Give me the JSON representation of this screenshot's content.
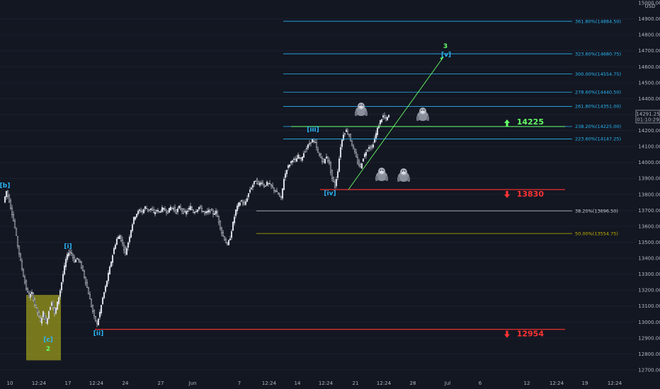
{
  "chart_data": {
    "type": "candlestick",
    "currency": "USD",
    "ylim": [
      12700,
      15000
    ],
    "y_ticks": [
      12700,
      12800,
      12900,
      13000,
      13100,
      13200,
      13300,
      13400,
      13500,
      13600,
      13700,
      13800,
      13900,
      14000,
      14100,
      14200,
      14300,
      14400,
      14500,
      14600,
      14700,
      14800,
      14900,
      15000
    ],
    "x_ticks": [
      "10",
      "12:24",
      "17",
      "12:24",
      "24",
      "27",
      "Jun",
      "7",
      "12:24",
      "14",
      "12:24",
      "21",
      "12:24",
      "28",
      "Jul",
      "6",
      "12",
      "12:24",
      "19",
      "12:24"
    ],
    "last_price": {
      "value": 14291.25,
      "label": "14291.25",
      "countdown": "01:10:29"
    },
    "fib_levels": [
      {
        "label": "361.80%(14884.50)",
        "value": 14884.5,
        "color": "#29b6f6"
      },
      {
        "label": "323.60%(14680.75)",
        "value": 14680.75,
        "color": "#29b6f6"
      },
      {
        "label": "300.00%(14554.75)",
        "value": 14554.75,
        "color": "#29b6f6"
      },
      {
        "label": "278.60%(14440.50)",
        "value": 14440.5,
        "color": "#29b6f6"
      },
      {
        "label": "261.80%(14351.00)",
        "value": 14351.0,
        "color": "#29b6f6"
      },
      {
        "label": "238.20%(14225.00)",
        "value": 14225.0,
        "color": "#29b6f6"
      },
      {
        "label": "223.60%(14147.25)",
        "value": 14147.25,
        "color": "#29b6f6"
      },
      {
        "label": "38.20%(13696.50)",
        "value": 13696.5,
        "color": "#d1d4dc"
      },
      {
        "label": "50.00%(13554.75)",
        "value": 13554.75,
        "color": "#c8b400"
      }
    ],
    "key_levels": [
      {
        "label": "14225",
        "value": 14225,
        "color": "#66ff66",
        "direction": "up"
      },
      {
        "label": "13830",
        "value": 13830,
        "color": "#ff3333",
        "direction": "down"
      },
      {
        "label": "12954",
        "value": 12954,
        "color": "#ff3333",
        "direction": "down"
      }
    ],
    "wave_labels": [
      {
        "text": "[b]",
        "color": "#29b6f6"
      },
      {
        "text": "[i]",
        "color": "#29b6f6"
      },
      {
        "text": "[c]",
        "color": "#29b6f6"
      },
      {
        "text": "2",
        "color": "#66ff66"
      },
      {
        "text": "[ii]",
        "color": "#29b6f6"
      },
      {
        "text": "[iii]",
        "color": "#29b6f6"
      },
      {
        "text": "[iv]",
        "color": "#29b6f6"
      },
      {
        "text": "[v]",
        "color": "#29b6f6"
      },
      {
        "text": "3",
        "color": "#66ff66"
      }
    ],
    "price_path": [
      [
        0,
        13750
      ],
      [
        4,
        13820
      ],
      [
        8,
        13760
      ],
      [
        12,
        13680
      ],
      [
        16,
        13590
      ],
      [
        20,
        13480
      ],
      [
        24,
        13380
      ],
      [
        28,
        13290
      ],
      [
        32,
        13210
      ],
      [
        36,
        13160
      ],
      [
        40,
        13180
      ],
      [
        44,
        13110
      ],
      [
        48,
        13060
      ],
      [
        52,
        13000
      ],
      [
        56,
        13060
      ],
      [
        60,
        12990
      ],
      [
        64,
        13070
      ],
      [
        68,
        13130
      ],
      [
        72,
        13050
      ],
      [
        76,
        13120
      ],
      [
        80,
        13200
      ],
      [
        84,
        13300
      ],
      [
        88,
        13390
      ],
      [
        92,
        13440
      ],
      [
        96,
        13430
      ],
      [
        100,
        13380
      ],
      [
        104,
        13400
      ],
      [
        108,
        13370
      ],
      [
        112,
        13320
      ],
      [
        116,
        13250
      ],
      [
        120,
        13180
      ],
      [
        124,
        13100
      ],
      [
        128,
        13030
      ],
      [
        132,
        12985
      ],
      [
        136,
        13060
      ],
      [
        140,
        13150
      ],
      [
        144,
        13220
      ],
      [
        148,
        13300
      ],
      [
        152,
        13380
      ],
      [
        156,
        13460
      ],
      [
        160,
        13520
      ],
      [
        164,
        13540
      ],
      [
        168,
        13490
      ],
      [
        172,
        13430
      ],
      [
        176,
        13500
      ],
      [
        180,
        13580
      ],
      [
        184,
        13650
      ],
      [
        188,
        13680
      ],
      [
        192,
        13700
      ],
      [
        196,
        13690
      ],
      [
        200,
        13720
      ],
      [
        204,
        13700
      ],
      [
        208,
        13710
      ],
      [
        212,
        13680
      ],
      [
        216,
        13700
      ],
      [
        220,
        13690
      ],
      [
        224,
        13710
      ],
      [
        228,
        13700
      ],
      [
        232,
        13690
      ],
      [
        236,
        13720
      ],
      [
        240,
        13710
      ],
      [
        244,
        13690
      ],
      [
        248,
        13720
      ],
      [
        252,
        13700
      ],
      [
        256,
        13680
      ],
      [
        260,
        13700
      ],
      [
        264,
        13720
      ],
      [
        268,
        13690
      ],
      [
        272,
        13700
      ],
      [
        276,
        13720
      ],
      [
        280,
        13700
      ],
      [
        284,
        13680
      ],
      [
        288,
        13690
      ],
      [
        292,
        13700
      ],
      [
        296,
        13680
      ],
      [
        300,
        13690
      ],
      [
        304,
        13630
      ],
      [
        308,
        13560
      ],
      [
        312,
        13520
      ],
      [
        316,
        13480
      ],
      [
        320,
        13530
      ],
      [
        324,
        13620
      ],
      [
        328,
        13700
      ],
      [
        332,
        13740
      ],
      [
        336,
        13760
      ],
      [
        340,
        13730
      ],
      [
        344,
        13780
      ],
      [
        348,
        13830
      ],
      [
        352,
        13860
      ],
      [
        356,
        13890
      ],
      [
        360,
        13860
      ],
      [
        364,
        13880
      ],
      [
        368,
        13850
      ],
      [
        372,
        13870
      ],
      [
        376,
        13860
      ],
      [
        380,
        13840
      ],
      [
        384,
        13820
      ],
      [
        388,
        13800
      ],
      [
        392,
        13770
      ],
      [
        396,
        13900
      ],
      [
        400,
        13960
      ],
      [
        404,
        13990
      ],
      [
        408,
        14020
      ],
      [
        412,
        14010
      ],
      [
        416,
        14040
      ],
      [
        420,
        14020
      ],
      [
        424,
        14060
      ],
      [
        428,
        14090
      ],
      [
        432,
        14120
      ],
      [
        436,
        14140
      ],
      [
        440,
        14120
      ],
      [
        444,
        14060
      ],
      [
        448,
        14030
      ],
      [
        452,
        14000
      ],
      [
        456,
        14040
      ],
      [
        460,
        13990
      ],
      [
        464,
        13900
      ],
      [
        468,
        13850
      ],
      [
        472,
        13950
      ],
      [
        476,
        14100
      ],
      [
        480,
        14180
      ],
      [
        484,
        14200
      ],
      [
        488,
        14170
      ],
      [
        492,
        14110
      ],
      [
        496,
        14060
      ],
      [
        500,
        14000
      ],
      [
        504,
        13970
      ],
      [
        508,
        14030
      ],
      [
        512,
        14070
      ],
      [
        516,
        14100
      ],
      [
        520,
        14090
      ],
      [
        524,
        14150
      ],
      [
        528,
        14210
      ],
      [
        532,
        14260
      ],
      [
        536,
        14290
      ],
      [
        540,
        14270
      ],
      [
        544,
        14291
      ]
    ]
  }
}
